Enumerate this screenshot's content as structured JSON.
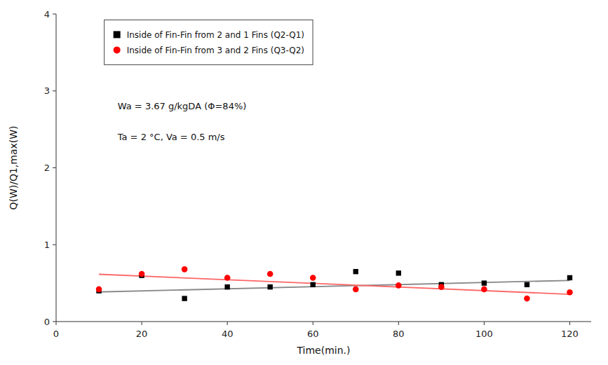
{
  "chart_data": {
    "type": "scatter",
    "x_label": "Time(min.)",
    "y_label": "Q(W)/Q1,max(W)",
    "xlim": [
      0,
      125
    ],
    "ylim": [
      0,
      4
    ],
    "xticks": [
      0,
      20,
      40,
      60,
      80,
      100,
      120
    ],
    "yticks": [
      0,
      1,
      2,
      3,
      4
    ],
    "grid": false,
    "legend": "upper left",
    "annotations": [
      "Wa = 3.67 g/kgDA (Φ=84%)",
      "Ta = 2 °C, Va = 0.5 m/s"
    ],
    "series": [
      {
        "name": "Inside of Fin-Fin from 2 and 1 Fins (Q2-Q1)",
        "type": "scatter",
        "marker": "square",
        "color": "#000000",
        "x": [
          10,
          20,
          30,
          40,
          50,
          60,
          70,
          80,
          90,
          100,
          110,
          120
        ],
        "values": [
          0.4,
          0.6,
          0.3,
          0.45,
          0.45,
          0.48,
          0.65,
          0.63,
          0.48,
          0.5,
          0.48,
          0.57
        ]
      },
      {
        "name": "Inside of Fin-Fin from 3 and 2 Fins (Q3-Q2)",
        "type": "scatter",
        "marker": "circle",
        "color": "#FF0000",
        "x": [
          10,
          20,
          30,
          40,
          50,
          60,
          70,
          80,
          90,
          100,
          110,
          120
        ],
        "values": [
          0.42,
          0.62,
          0.68,
          0.57,
          0.62,
          0.57,
          0.42,
          0.47,
          0.45,
          0.42,
          0.3,
          0.38
        ]
      },
      {
        "type": "line",
        "line_style": "solid",
        "color": "#888888",
        "x": [
          10,
          120
        ],
        "values": [
          0.385,
          0.535
        ]
      },
      {
        "type": "line",
        "line_style": "solid",
        "color": "#FF6666",
        "x": [
          10,
          120
        ],
        "values": [
          0.615,
          0.355
        ]
      }
    ]
  }
}
